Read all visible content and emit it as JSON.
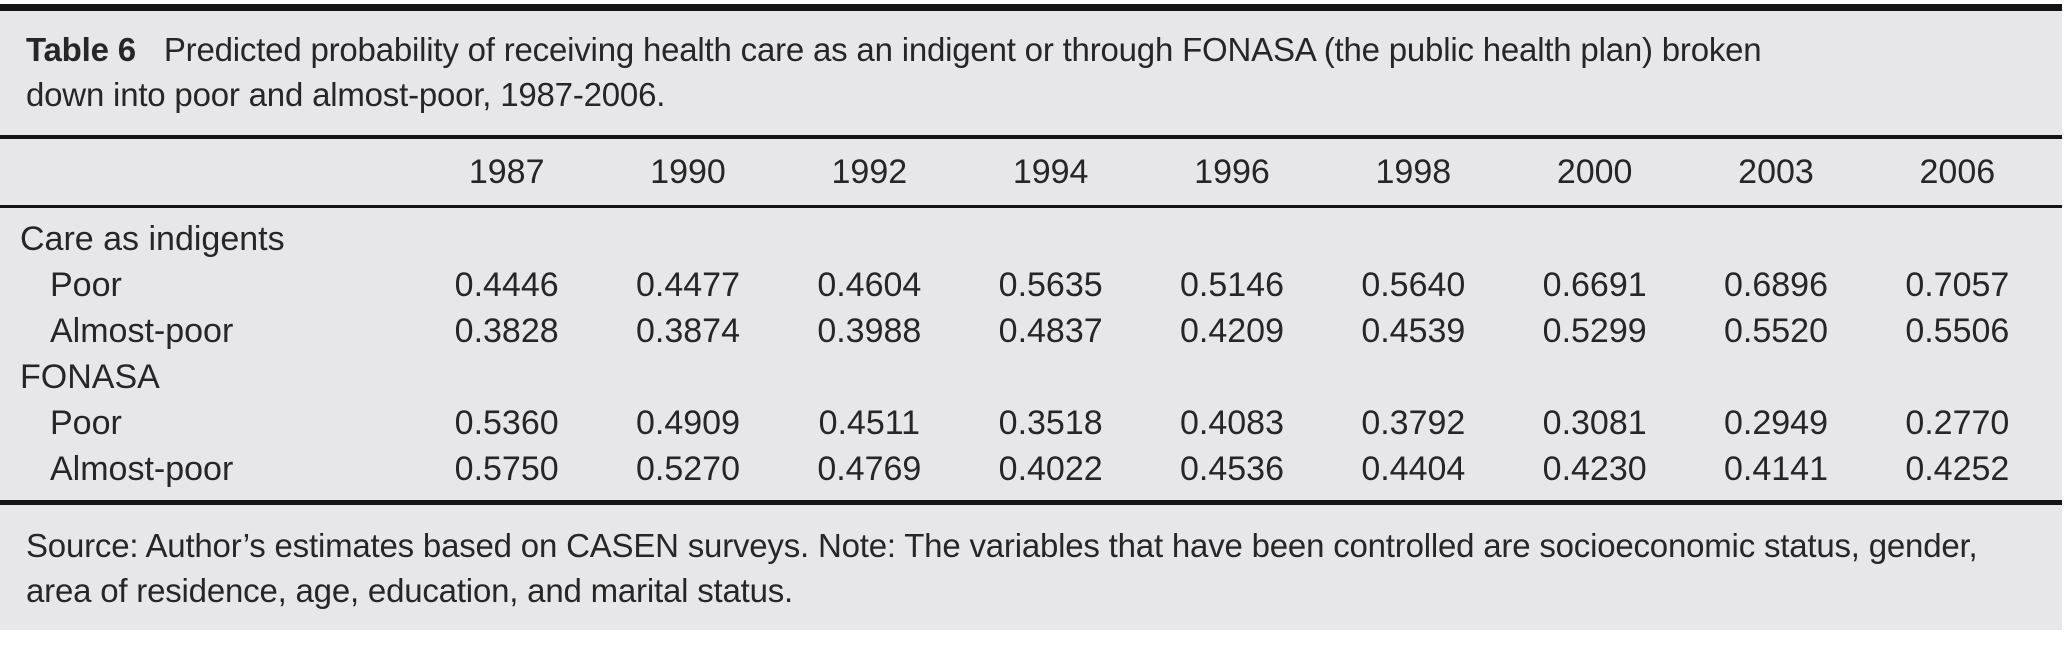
{
  "colors": {
    "panel_bg": "#e7e7e9",
    "text": "#262626",
    "rule": "#141414"
  },
  "table": {
    "caption": {
      "label": "Table 6",
      "lines": [
        "Predicted probability of receiving health care as an indigent or through FONASA (the public health plan) broken",
        "down into poor and almost-poor, 1987-2006."
      ]
    },
    "years": [
      "1987",
      "1990",
      "1992",
      "1994",
      "1996",
      "1998",
      "2000",
      "2003",
      "2006"
    ],
    "sections": [
      {
        "label": "Care as indigents",
        "rows": [
          {
            "label": "Poor",
            "values": [
              "0.4446",
              "0.4477",
              "0.4604",
              "0.5635",
              "0.5146",
              "0.5640",
              "0.6691",
              "0.6896",
              "0.7057"
            ]
          },
          {
            "label": "Almost-poor",
            "values": [
              "0.3828",
              "0.3874",
              "0.3988",
              "0.4837",
              "0.4209",
              "0.4539",
              "0.5299",
              "0.5520",
              "0.5506"
            ]
          }
        ]
      },
      {
        "label": "FONASA",
        "rows": [
          {
            "label": "Poor",
            "values": [
              "0.5360",
              "0.4909",
              "0.4511",
              "0.3518",
              "0.4083",
              "0.3792",
              "0.3081",
              "0.2949",
              "0.2770"
            ]
          },
          {
            "label": "Almost-poor",
            "values": [
              "0.5750",
              "0.5270",
              "0.4769",
              "0.4022",
              "0.4536",
              "0.4404",
              "0.4230",
              "0.4141",
              "0.4252"
            ]
          }
        ]
      }
    ],
    "note_lines": [
      "Source: Author’s estimates based on CASEN surveys. Note: The variables that have been controlled are socioeconomic status, gender,",
      "area of residence, age, education, and marital status."
    ]
  },
  "chart_data": {
    "type": "table",
    "title": "Table 6 Predicted probability of receiving health care as an indigent or through FONASA (the public health plan) broken down into poor and almost-poor, 1987-2006.",
    "categories": [
      "1987",
      "1990",
      "1992",
      "1994",
      "1996",
      "1998",
      "2000",
      "2003",
      "2006"
    ],
    "series": [
      {
        "name": "Care as indigents - Poor",
        "values": [
          0.4446,
          0.4477,
          0.4604,
          0.5635,
          0.5146,
          0.564,
          0.6691,
          0.6896,
          0.7057
        ]
      },
      {
        "name": "Care as indigents - Almost-poor",
        "values": [
          0.3828,
          0.3874,
          0.3988,
          0.4837,
          0.4209,
          0.4539,
          0.5299,
          0.552,
          0.5506
        ]
      },
      {
        "name": "FONASA - Poor",
        "values": [
          0.536,
          0.4909,
          0.4511,
          0.3518,
          0.4083,
          0.3792,
          0.3081,
          0.2949,
          0.277
        ]
      },
      {
        "name": "FONASA - Almost-poor",
        "values": [
          0.575,
          0.527,
          0.4769,
          0.4022,
          0.4536,
          0.4404,
          0.423,
          0.4141,
          0.4252
        ]
      }
    ],
    "source_note": "Source: Author’s estimates based on CASEN surveys. Note: The variables that have been controlled are socioeconomic status, gender, area of residence, age, education, and marital status."
  }
}
